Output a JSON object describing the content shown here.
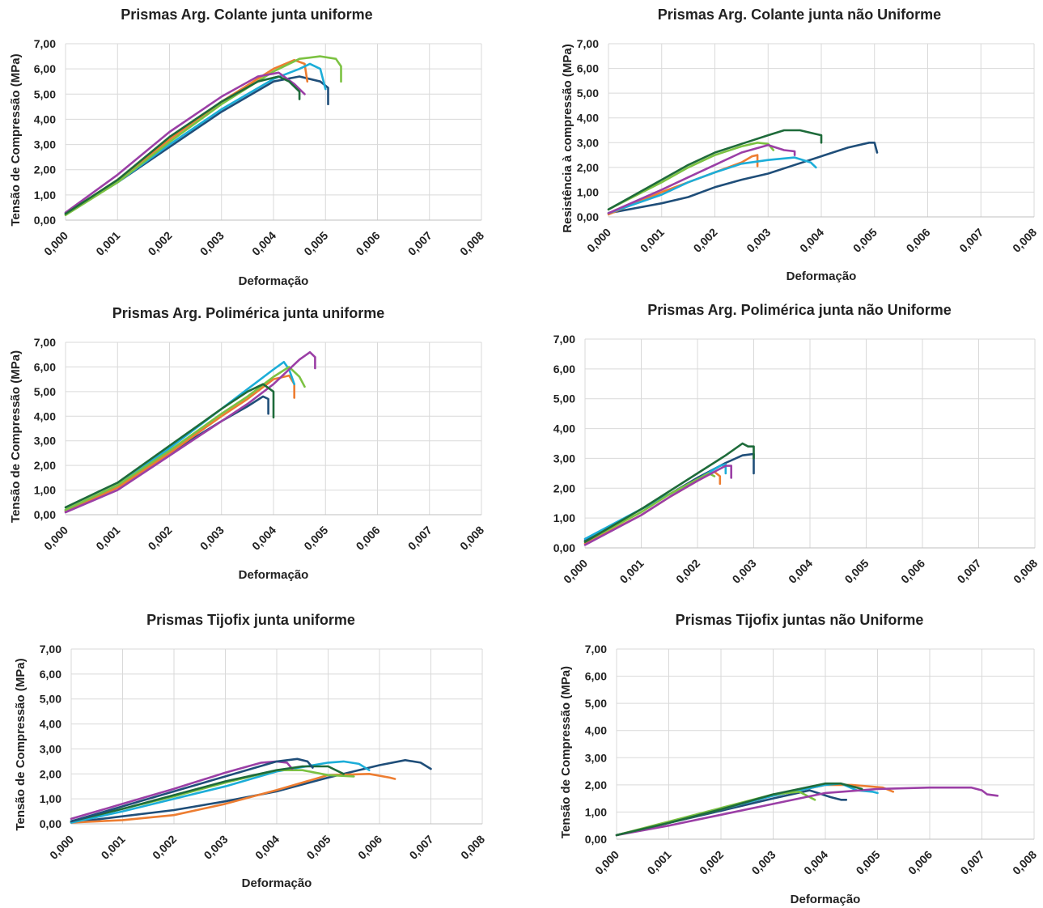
{
  "series_colors": [
    "#1f4e79",
    "#ed7d31",
    "#1cadd8",
    "#7cc242",
    "#9b3fa6",
    "#1e6b3a"
  ],
  "chart_data": [
    {
      "type": "line",
      "title": "Prismas Arg. Colante junta uniforme",
      "xlabel": "Deformação",
      "ylabel": "Tensão de Compressão (MPa)",
      "xlim": [
        0,
        0.008
      ],
      "ylim": [
        0,
        7
      ],
      "grid": true,
      "xticks": [
        "0,000",
        "0,001",
        "0,002",
        "0,003",
        "0,004",
        "0,005",
        "0,006",
        "0,007",
        "0,008"
      ],
      "yticks": [
        "0,00",
        "1,00",
        "2,00",
        "3,00",
        "4,00",
        "5,00",
        "6,00",
        "7,00"
      ],
      "series": [
        {
          "x": [
            0,
            0.001,
            0.002,
            0.003,
            0.004,
            0.0045,
            0.0049,
            0.00505,
            0.00505
          ],
          "y": [
            0.25,
            1.5,
            2.9,
            4.3,
            5.5,
            5.7,
            5.5,
            5.25,
            4.6
          ]
        },
        {
          "x": [
            0,
            0.001,
            0.002,
            0.003,
            0.004,
            0.0044,
            0.0046,
            0.00465
          ],
          "y": [
            0.25,
            1.6,
            3.2,
            4.7,
            6.0,
            6.35,
            6.2,
            5.5
          ]
        },
        {
          "x": [
            0,
            0.001,
            0.002,
            0.003,
            0.004,
            0.0045,
            0.0047,
            0.0049,
            0.005
          ],
          "y": [
            0.25,
            1.5,
            3.0,
            4.4,
            5.6,
            6.0,
            6.2,
            6.0,
            5.2
          ]
        },
        {
          "x": [
            0,
            0.001,
            0.002,
            0.003,
            0.004,
            0.0045,
            0.0049,
            0.0052,
            0.0053,
            0.0053
          ],
          "y": [
            0.2,
            1.5,
            3.1,
            4.6,
            5.9,
            6.4,
            6.5,
            6.4,
            6.1,
            5.5
          ]
        },
        {
          "x": [
            0,
            0.001,
            0.002,
            0.003,
            0.0037,
            0.0041,
            0.0044,
            0.0046
          ],
          "y": [
            0.3,
            1.8,
            3.5,
            4.9,
            5.7,
            5.85,
            5.4,
            5.0
          ]
        },
        {
          "x": [
            0,
            0.001,
            0.002,
            0.003,
            0.0037,
            0.0041,
            0.0043,
            0.0045,
            0.0045
          ],
          "y": [
            0.25,
            1.6,
            3.3,
            4.7,
            5.5,
            5.7,
            5.5,
            5.1,
            4.8
          ]
        }
      ]
    },
    {
      "type": "line",
      "title": "Prismas Arg. Colante junta não Uniforme",
      "xlabel": "Deformação",
      "ylabel": "Resistência à compressão (MPa)",
      "xlim": [
        0,
        0.008
      ],
      "ylim": [
        0,
        7
      ],
      "grid": true,
      "xticks": [
        "0,000",
        "0,001",
        "0,002",
        "0,003",
        "0,004",
        "0,005",
        "0,006",
        "0,007",
        "0,008"
      ],
      "yticks": [
        "0,00",
        "1,00",
        "2,00",
        "3,00",
        "4,00",
        "5,00",
        "6,00",
        "7,00"
      ],
      "series": [
        {
          "x": [
            0,
            0.001,
            0.0015,
            0.002,
            0.0025,
            0.003,
            0.0035,
            0.004,
            0.0045,
            0.0049,
            0.005,
            0.00505
          ],
          "y": [
            0.15,
            0.55,
            0.8,
            1.2,
            1.5,
            1.75,
            2.1,
            2.45,
            2.8,
            3.0,
            3.0,
            2.6
          ]
        },
        {
          "x": [
            0,
            0.001,
            0.0015,
            0.002,
            0.0025,
            0.0027,
            0.0028,
            0.0028
          ],
          "y": [
            0.1,
            1.0,
            1.4,
            1.8,
            2.2,
            2.45,
            2.5,
            2.05
          ]
        },
        {
          "x": [
            0,
            0.001,
            0.0015,
            0.002,
            0.0025,
            0.003,
            0.0035,
            0.0038,
            0.0039
          ],
          "y": [
            0.15,
            0.9,
            1.4,
            1.8,
            2.15,
            2.3,
            2.4,
            2.2,
            2.0
          ]
        },
        {
          "x": [
            0,
            0.001,
            0.0015,
            0.002,
            0.0025,
            0.0028,
            0.003,
            0.0031
          ],
          "y": [
            0.3,
            1.4,
            2.0,
            2.5,
            2.85,
            3.0,
            2.95,
            2.7
          ]
        },
        {
          "x": [
            0,
            0.001,
            0.0015,
            0.002,
            0.0025,
            0.003,
            0.0033,
            0.0035,
            0.0035
          ],
          "y": [
            0.15,
            1.1,
            1.6,
            2.1,
            2.6,
            2.9,
            2.7,
            2.65,
            2.5
          ]
        },
        {
          "x": [
            0,
            0.001,
            0.0015,
            0.002,
            0.0025,
            0.003,
            0.0033,
            0.0036,
            0.0039,
            0.004,
            0.004
          ],
          "y": [
            0.3,
            1.5,
            2.1,
            2.6,
            2.95,
            3.3,
            3.5,
            3.5,
            3.35,
            3.3,
            3.0
          ]
        }
      ]
    },
    {
      "type": "line",
      "title": "Prismas Arg. Polimérica junta uniforme",
      "xlabel": "Deformação",
      "ylabel": "Tensão de Compressão (MPa)",
      "xlim": [
        0,
        0.008
      ],
      "ylim": [
        0,
        7
      ],
      "grid": true,
      "xticks": [
        "0,000",
        "0,001",
        "0,002",
        "0,003",
        "0,004",
        "0,005",
        "0,006",
        "0,007",
        "0,008"
      ],
      "yticks": [
        "0,00",
        "1,00",
        "2,00",
        "3,00",
        "4,00",
        "5,00",
        "6,00",
        "7,00"
      ],
      "series": [
        {
          "x": [
            0,
            0.001,
            0.002,
            0.003,
            0.0035,
            0.0038,
            0.0039,
            0.0039
          ],
          "y": [
            0.15,
            1.1,
            2.5,
            3.8,
            4.4,
            4.8,
            4.7,
            4.1
          ]
        },
        {
          "x": [
            0,
            0.001,
            0.002,
            0.003,
            0.0035,
            0.004,
            0.0043,
            0.0044,
            0.0044
          ],
          "y": [
            0.15,
            1.1,
            2.5,
            4.0,
            4.7,
            5.5,
            5.65,
            5.3,
            4.75
          ]
        },
        {
          "x": [
            0,
            0.001,
            0.002,
            0.003,
            0.0035,
            0.004,
            0.0042,
            0.0043,
            0.0044
          ],
          "y": [
            0.2,
            1.2,
            2.7,
            4.3,
            5.1,
            5.9,
            6.2,
            5.9,
            5.3
          ]
        },
        {
          "x": [
            0,
            0.001,
            0.002,
            0.003,
            0.0035,
            0.004,
            0.0043,
            0.0045,
            0.0046
          ],
          "y": [
            0.2,
            1.2,
            2.6,
            4.1,
            4.8,
            5.6,
            6.0,
            5.6,
            5.2
          ]
        },
        {
          "x": [
            0,
            0.001,
            0.002,
            0.003,
            0.0035,
            0.004,
            0.0045,
            0.0047,
            0.0048,
            0.0048
          ],
          "y": [
            0.1,
            1.0,
            2.4,
            3.8,
            4.5,
            5.3,
            6.3,
            6.6,
            6.4,
            5.95
          ]
        },
        {
          "x": [
            0,
            0.001,
            0.002,
            0.003,
            0.0035,
            0.0038,
            0.004,
            0.004
          ],
          "y": [
            0.3,
            1.3,
            2.8,
            4.3,
            5.0,
            5.3,
            5.0,
            3.95
          ]
        }
      ]
    },
    {
      "type": "line",
      "title": "Prismas Arg. Polimérica junta não Uniforme",
      "xlabel": "",
      "ylabel": "",
      "xlim": [
        0,
        0.008
      ],
      "ylim": [
        0,
        7
      ],
      "grid": true,
      "xticks": [
        "0,000",
        "0,001",
        "0,002",
        "0,003",
        "0,004",
        "0,005",
        "0,006",
        "0,007",
        "0,008"
      ],
      "yticks": [
        "0,00",
        "1,00",
        "2,00",
        "3,00",
        "4,00",
        "5,00",
        "6,00",
        "7,00"
      ],
      "series": [
        {
          "x": [
            0,
            0.001,
            0.0015,
            0.002,
            0.0025,
            0.0028,
            0.003,
            0.003
          ],
          "y": [
            0.25,
            1.3,
            1.8,
            2.35,
            2.85,
            3.1,
            3.15,
            2.5
          ]
        },
        {
          "x": [
            0,
            0.001,
            0.0015,
            0.002,
            0.0023,
            0.0024,
            0.0024
          ],
          "y": [
            0.15,
            1.1,
            1.7,
            2.25,
            2.55,
            2.4,
            2.15
          ]
        },
        {
          "x": [
            0,
            0.001,
            0.0015,
            0.002,
            0.0024,
            0.0025,
            0.0025
          ],
          "y": [
            0.3,
            1.3,
            1.8,
            2.3,
            2.75,
            2.8,
            2.5
          ]
        },
        {
          "x": [
            0,
            0.001,
            0.0015,
            0.002,
            0.0022,
            0.0023
          ],
          "y": [
            0.2,
            1.2,
            1.8,
            2.3,
            2.5,
            2.4
          ]
        },
        {
          "x": [
            0,
            0.001,
            0.0015,
            0.002,
            0.0025,
            0.0026,
            0.0026
          ],
          "y": [
            0.1,
            1.1,
            1.7,
            2.25,
            2.75,
            2.75,
            2.35
          ]
        },
        {
          "x": [
            0,
            0.001,
            0.0015,
            0.002,
            0.0025,
            0.0028,
            0.0029,
            0.003,
            0.003
          ],
          "y": [
            0.2,
            1.3,
            1.9,
            2.5,
            3.1,
            3.5,
            3.4,
            3.4,
            3.0
          ]
        }
      ]
    },
    {
      "type": "line",
      "title": "Prismas Tijofix junta uniforme",
      "xlabel": "Deformação",
      "ylabel": "Tensão de Compressão (MPa)",
      "xlim": [
        0,
        0.008
      ],
      "ylim": [
        0,
        7
      ],
      "grid": true,
      "xticks": [
        "0,000",
        "0,001",
        "0,002",
        "0,003",
        "0,004",
        "0,005",
        "0,006",
        "0,007",
        "0,008"
      ],
      "yticks": [
        "0,00",
        "1,00",
        "2,00",
        "3,00",
        "4,00",
        "5,00",
        "6,00",
        "7,00"
      ],
      "series": [
        {
          "x": [
            0,
            0.001,
            0.002,
            0.003,
            0.004,
            0.005,
            0.006,
            0.0065,
            0.0068,
            0.007
          ],
          "y": [
            0.05,
            0.3,
            0.55,
            0.9,
            1.3,
            1.85,
            2.35,
            2.55,
            2.45,
            2.2
          ]
        },
        {
          "x": [
            0,
            0.001,
            0.002,
            0.003,
            0.004,
            0.005,
            0.0058,
            0.0062,
            0.0063
          ],
          "y": [
            0.05,
            0.15,
            0.35,
            0.8,
            1.35,
            1.95,
            2.0,
            1.85,
            1.8
          ]
        },
        {
          "x": [
            0,
            0.001,
            0.002,
            0.003,
            0.004,
            0.005,
            0.0053,
            0.0056,
            0.0058
          ],
          "y": [
            0.05,
            0.5,
            1.0,
            1.5,
            2.1,
            2.45,
            2.5,
            2.4,
            2.15
          ]
        },
        {
          "x": [
            0,
            0.001,
            0.002,
            0.003,
            0.004,
            0.0045,
            0.005,
            0.0055
          ],
          "y": [
            0.1,
            0.6,
            1.1,
            1.65,
            2.15,
            2.15,
            1.95,
            1.9
          ]
        },
        {
          "x": [
            0,
            0.001,
            0.002,
            0.003,
            0.0037,
            0.004,
            0.0042,
            0.0043
          ],
          "y": [
            0.2,
            0.8,
            1.4,
            2.05,
            2.45,
            2.5,
            2.45,
            2.2
          ]
        },
        {
          "x": [
            0,
            0.001,
            0.002,
            0.003,
            0.004,
            0.0045,
            0.005,
            0.0053
          ],
          "y": [
            0.1,
            0.6,
            1.15,
            1.7,
            2.15,
            2.3,
            2.3,
            2.0
          ]
        },
        {
          "x": [
            0,
            0.001,
            0.002,
            0.003,
            0.004,
            0.0044,
            0.0046,
            0.0047
          ],
          "y": [
            0.1,
            0.7,
            1.3,
            1.9,
            2.5,
            2.6,
            2.5,
            2.25
          ]
        }
      ]
    },
    {
      "type": "line",
      "title": "Prismas Tijofix juntas não Uniforme",
      "xlabel": "Deformação",
      "ylabel": "Tensão de Compressão (MPa)",
      "xlim": [
        0,
        0.008
      ],
      "ylim": [
        0,
        7
      ],
      "grid": true,
      "xticks": [
        "0,000",
        "0,001",
        "0,002",
        "0,003",
        "0,004",
        "0,005",
        "0,006",
        "0,007",
        "0,008"
      ],
      "yticks": [
        "0,00",
        "1,00",
        "2,00",
        "3,00",
        "4,00",
        "5,00",
        "6,00",
        "7,00"
      ],
      "series": [
        {
          "x": [
            0,
            0.001,
            0.002,
            0.003,
            0.0037,
            0.0041,
            0.0043,
            0.0044
          ],
          "y": [
            0.15,
            0.6,
            1.05,
            1.5,
            1.8,
            1.55,
            1.45,
            1.45
          ]
        },
        {
          "x": [
            0,
            0.001,
            0.002,
            0.003,
            0.004,
            0.0045,
            0.0048,
            0.0051,
            0.0053
          ],
          "y": [
            0.15,
            0.6,
            1.1,
            1.6,
            2.0,
            2.0,
            1.95,
            1.9,
            1.75
          ]
        },
        {
          "x": [
            0,
            0.001,
            0.002,
            0.003,
            0.004,
            0.0043,
            0.0046,
            0.0049,
            0.005
          ],
          "y": [
            0.15,
            0.6,
            1.1,
            1.6,
            2.0,
            2.05,
            1.8,
            1.75,
            1.7
          ]
        },
        {
          "x": [
            0,
            0.001,
            0.002,
            0.003,
            0.0035,
            0.0037,
            0.0038
          ],
          "y": [
            0.15,
            0.65,
            1.15,
            1.65,
            1.75,
            1.55,
            1.45
          ]
        },
        {
          "x": [
            0,
            0.001,
            0.002,
            0.003,
            0.004,
            0.005,
            0.006,
            0.0068,
            0.007,
            0.0071,
            0.0073
          ],
          "y": [
            0.15,
            0.5,
            0.9,
            1.3,
            1.7,
            1.85,
            1.9,
            1.9,
            1.8,
            1.65,
            1.6
          ]
        },
        {
          "x": [
            0,
            0.001,
            0.002,
            0.003,
            0.004,
            0.0043,
            0.0045,
            0.0047
          ],
          "y": [
            0.15,
            0.6,
            1.1,
            1.65,
            2.05,
            2.05,
            1.95,
            1.85
          ]
        }
      ]
    }
  ]
}
